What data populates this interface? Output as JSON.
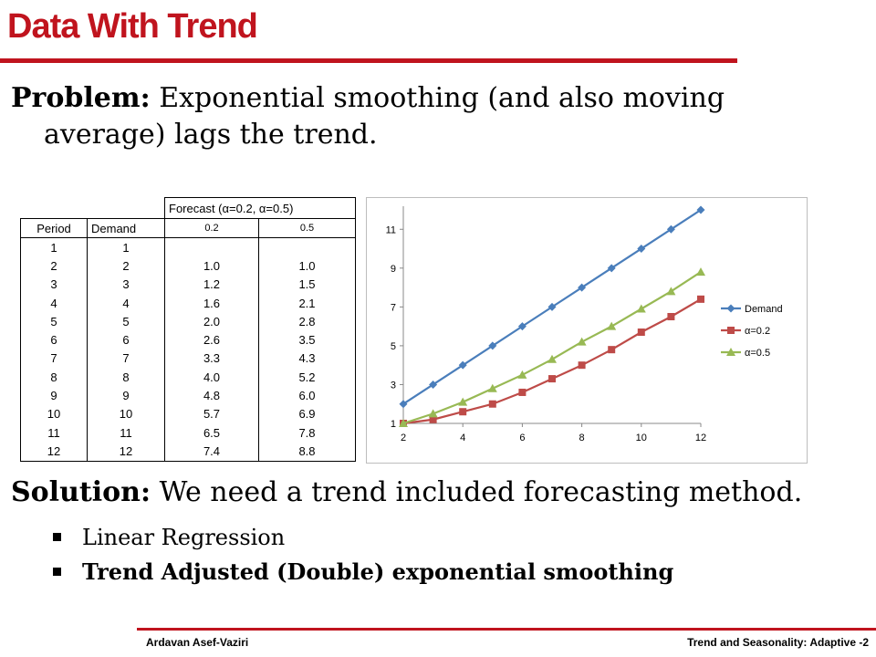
{
  "title": "Data With Trend",
  "problem": {
    "label": "Problem:",
    "text_line1": " Exponential smoothing (and also moving",
    "text_line2": "average) lags the trend."
  },
  "table": {
    "group_header": "Forecast (α=0.2, α=0.5)",
    "columns": [
      "Period",
      "Demand",
      "0.2",
      "0.5"
    ],
    "rows": [
      [
        "1",
        "1",
        "",
        ""
      ],
      [
        "2",
        "2",
        "1.0",
        "1.0"
      ],
      [
        "3",
        "3",
        "1.2",
        "1.5"
      ],
      [
        "4",
        "4",
        "1.6",
        "2.1"
      ],
      [
        "5",
        "5",
        "2.0",
        "2.8"
      ],
      [
        "6",
        "6",
        "2.6",
        "3.5"
      ],
      [
        "7",
        "7",
        "3.3",
        "4.3"
      ],
      [
        "8",
        "8",
        "4.0",
        "5.2"
      ],
      [
        "9",
        "9",
        "4.8",
        "6.0"
      ],
      [
        "10",
        "10",
        "5.7",
        "6.9"
      ],
      [
        "11",
        "11",
        "6.5",
        "7.8"
      ],
      [
        "12",
        "12",
        "7.4",
        "8.8"
      ]
    ]
  },
  "chart_data": {
    "type": "line",
    "x": [
      2,
      3,
      4,
      5,
      6,
      7,
      8,
      9,
      10,
      11,
      12
    ],
    "xlim": [
      2,
      12
    ],
    "ylim": [
      1,
      12
    ],
    "x_ticks": [
      2,
      4,
      6,
      8,
      10,
      12
    ],
    "y_ticks": [
      1,
      3,
      5,
      7,
      9,
      11
    ],
    "grid": false,
    "legend_position": "right",
    "series": [
      {
        "name": "Demand",
        "color": "#4a7ebb",
        "marker": "diamond",
        "values": [
          2,
          3,
          4,
          5,
          6,
          7,
          8,
          9,
          10,
          11,
          12
        ]
      },
      {
        "name": "α=0.2",
        "color": "#be4b48",
        "marker": "square",
        "values": [
          1.0,
          1.2,
          1.6,
          2.0,
          2.6,
          3.3,
          4.0,
          4.8,
          5.7,
          6.5,
          7.4
        ]
      },
      {
        "name": "α=0.5",
        "color": "#98b954",
        "marker": "triangle",
        "values": [
          1.0,
          1.5,
          2.1,
          2.8,
          3.5,
          4.3,
          5.2,
          6.0,
          6.9,
          7.8,
          8.8
        ]
      }
    ]
  },
  "solution": {
    "label": "Solution:",
    "text": " We need a trend included forecasting method."
  },
  "bullets": [
    {
      "text": "Linear Regression",
      "bold": false
    },
    {
      "text": "Trend Adjusted (Double) exponential smoothing",
      "bold": true
    }
  ],
  "footer": {
    "left": "Ardavan Asef-Vaziri",
    "right": "Trend and Seasonality: Adaptive -2"
  },
  "colors": {
    "accent": "#c0141e"
  }
}
